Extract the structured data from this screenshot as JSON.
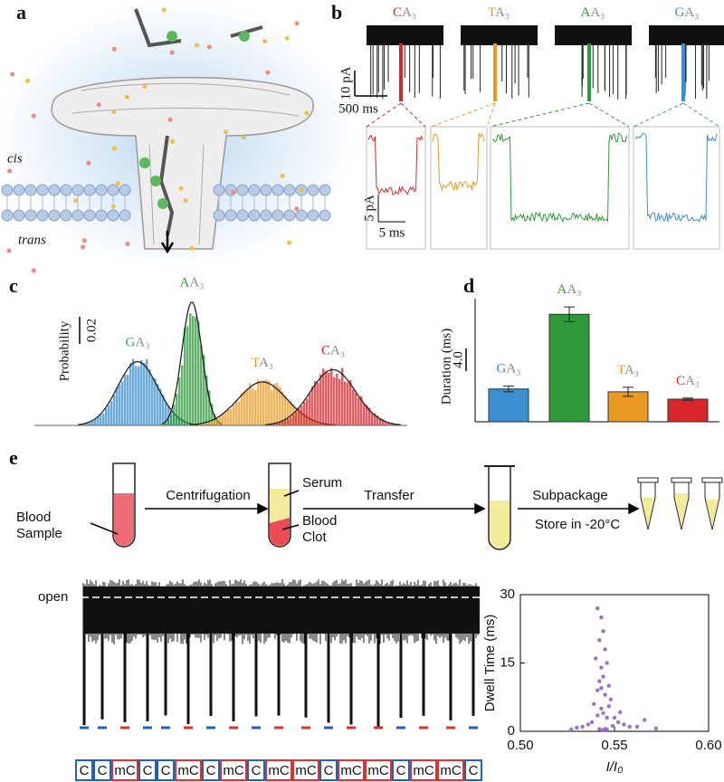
{
  "panels": {
    "a": {
      "letter": "a",
      "cis": "cis",
      "trans": "trans"
    },
    "b": {
      "letter": "b",
      "labels": [
        "CA₃",
        "TA₃",
        "AA₃",
        "GA₃"
      ],
      "colors": [
        "#d9262b",
        "#e89a22",
        "#2e9a3a",
        "#3a8fd0"
      ],
      "scale_current": "10 pA",
      "scale_time": "500 ms",
      "inset_current": "5 pA",
      "inset_time": "5 ms"
    },
    "c": {
      "type": "histogram",
      "letter": "c",
      "ylabel": "Probability",
      "scale_bar": 0.02,
      "peaks": [
        {
          "name": "GA₃",
          "color": "#3a8fd0",
          "height": 0.047
        },
        {
          "name": "AA₃",
          "color": "#2e9a3a",
          "height": 0.091
        },
        {
          "name": "TA₃",
          "color": "#e89a22",
          "height": 0.032
        },
        {
          "name": "CA₃",
          "color": "#d9262b",
          "height": 0.041
        }
      ]
    },
    "d": {
      "type": "bar",
      "letter": "d",
      "ylabel": "Duration (ms)",
      "scale_bar": {
        "value": 4,
        "label": "4.0"
      },
      "categories": [
        "GA₃",
        "AA₃",
        "TA₃",
        "CA₃"
      ],
      "colors": [
        "#3a8fd0",
        "#2e9a3a",
        "#e89a22",
        "#d9262b"
      ],
      "values": [
        5.8,
        19,
        5.3,
        4.0
      ],
      "errors": [
        0.5,
        1.3,
        0.8,
        0.2
      ]
    },
    "e": {
      "letter": "e",
      "blood_sample": [
        "Blood",
        "Sample"
      ],
      "centrifugation": "Centrifugation",
      "serum": "Serum",
      "blood_clot": [
        "Blood",
        "Clot"
      ],
      "transfer": "Transfer",
      "subpackage": "Subpackage",
      "store": "Store in -20°C",
      "trace_label": "open",
      "sequence": [
        "C",
        "C",
        "mC",
        "C",
        "C",
        "mC",
        "C",
        "mC",
        "C",
        "mC",
        "mC",
        "C",
        "mC",
        "mC",
        "C",
        "mC",
        "mC",
        "C"
      ],
      "scatter": {
        "type": "scatter",
        "xlabel": "I/I₀",
        "ylabel": "Dwell Time (ms)",
        "xlim": [
          0.5,
          0.6
        ],
        "ylim": [
          0,
          30
        ],
        "xticks": [
          {
            "value": 0.5,
            "label": "0.50"
          },
          {
            "value": 0.55,
            "label": "0.55"
          },
          {
            "value": 0.6,
            "label": "0.60"
          }
        ],
        "yticks": [
          0,
          15,
          30
        ],
        "color": "#a070c8",
        "x": [
          0.541,
          0.543,
          0.544,
          0.542,
          0.545,
          0.54,
          0.546,
          0.543,
          0.544,
          0.542,
          0.547,
          0.541,
          0.545,
          0.548,
          0.539,
          0.543,
          0.544,
          0.546,
          0.55,
          0.552,
          0.538,
          0.536,
          0.555,
          0.558,
          0.533,
          0.562,
          0.545,
          0.542,
          0.544,
          0.549,
          0.541,
          0.547,
          0.543,
          0.553,
          0.53,
          0.566,
          0.572,
          0.527,
          0.544,
          0.546
        ],
        "y": [
          27,
          25,
          22,
          20,
          18,
          16,
          15,
          14,
          12,
          11,
          10,
          9,
          8,
          7,
          6,
          5,
          4,
          3,
          3,
          2,
          2,
          1.5,
          1.5,
          1,
          1,
          1,
          0.5,
          0.5,
          0.3,
          1.2,
          3.5,
          5.5,
          9.5,
          4.2,
          0.8,
          2.5,
          0.6,
          0.4,
          0.2,
          0.4
        ]
      }
    }
  }
}
